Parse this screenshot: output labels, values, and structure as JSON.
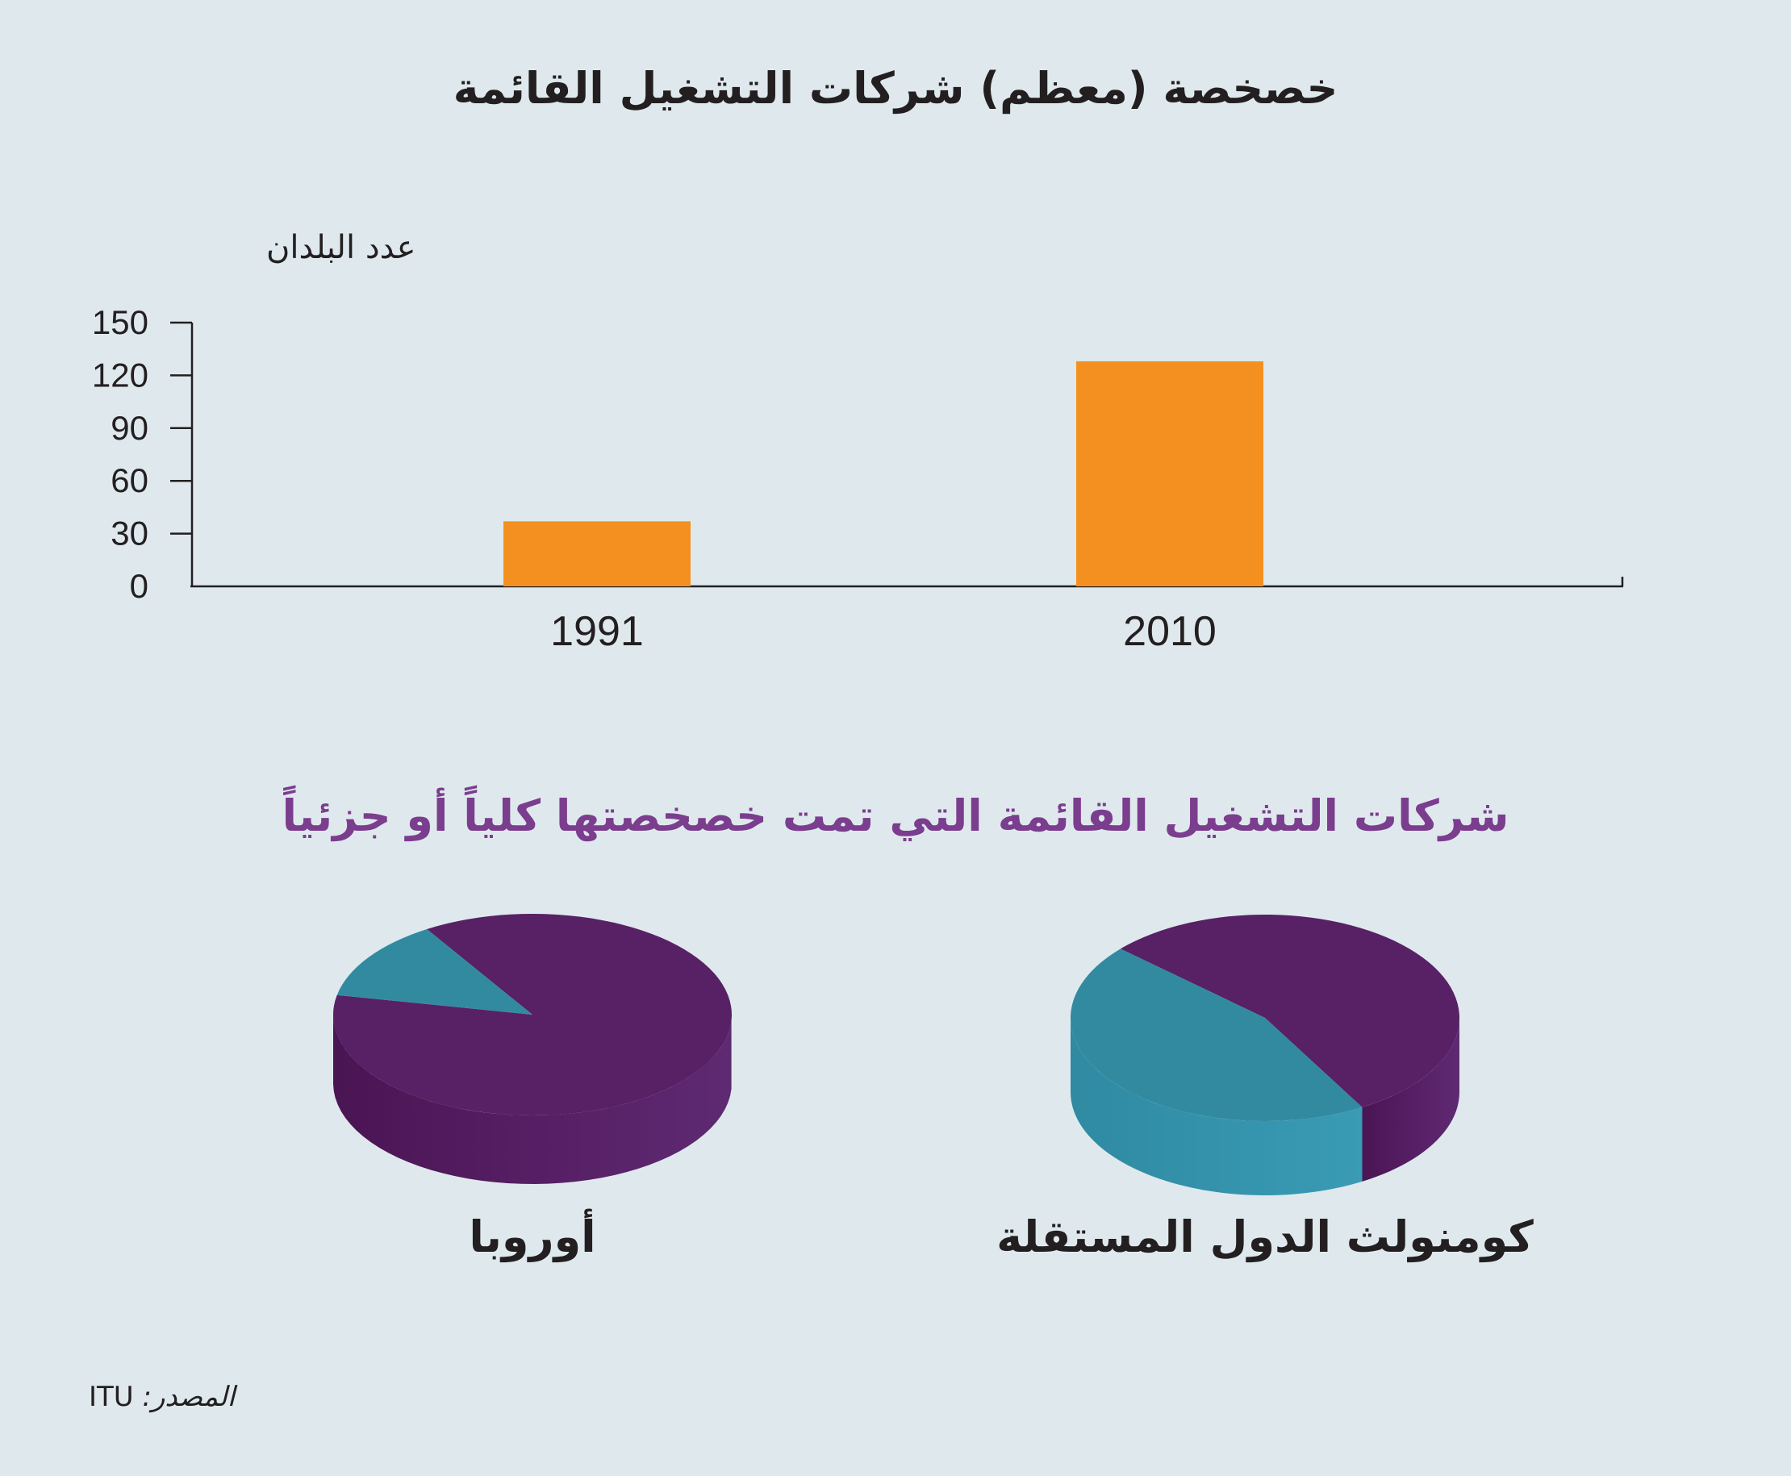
{
  "main_title": "خصخصة (معظم) شركات التشغيل القائمة",
  "chart_data": [
    {
      "type": "bar",
      "ylabel": "عدد البلدان",
      "categories": [
        "1991",
        "2010"
      ],
      "values": [
        37,
        128
      ],
      "ylim": [
        0,
        150
      ],
      "yticks": [
        "0",
        "30",
        "60",
        "90",
        "120",
        "150"
      ],
      "bar_color": "#f39020"
    },
    {
      "type": "pie",
      "title": "شركات التشغيل القائمة التي تمت خصخصتها كلياً أو جزئياً",
      "pies": [
        {
          "label": "أوروبا",
          "slices": [
            {
              "value": 0.87,
              "color": "#582065"
            },
            {
              "value": 0.13,
              "color": "#328aa1"
            }
          ]
        },
        {
          "label": "كومنولث الدول المستقلة",
          "slices": [
            {
              "value": 0.55,
              "color": "#582065"
            },
            {
              "value": 0.45,
              "color": "#328aa1"
            }
          ]
        }
      ]
    }
  ],
  "source": {
    "label": "المصدر:",
    "value": "ITU"
  }
}
